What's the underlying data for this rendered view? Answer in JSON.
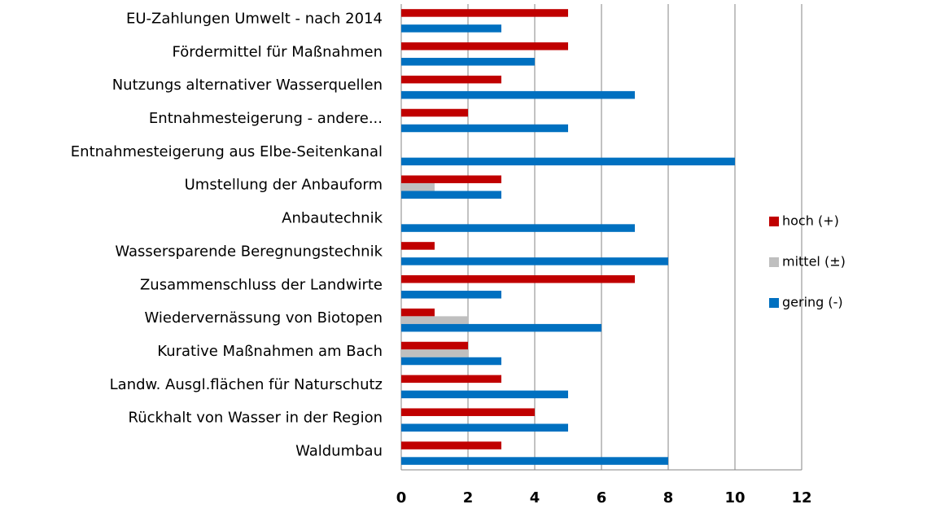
{
  "chart_data": {
    "type": "bar",
    "orientation": "horizontal",
    "categories": [
      "EU-Zahlungen Umwelt - nach 2014",
      "Fördermittel für Maßnahmen",
      "Nutzungs alternativer Wasserquellen",
      "Entnahmesteigerung - andere...",
      "Entnahmesteigerung aus Elbe-Seitenkanal",
      "Umstellung der Anbauform",
      "Anbautechnik",
      "Wassersparende Beregnungstechnik",
      "Zusammenschluss der Landwirte",
      "Wiedervernässung von Biotopen",
      "Kurative Maßnahmen am Bach",
      "Landw. Ausgl.flächen für Naturschutz",
      "Rückhalt von Wasser in der Region",
      "Waldumbau"
    ],
    "series": [
      {
        "name": "hoch (+)",
        "color": "#c00000",
        "values": [
          5,
          5,
          3,
          2,
          0,
          3,
          0,
          1,
          7,
          1,
          2,
          3,
          4,
          3
        ]
      },
      {
        "name": "mittel (±)",
        "color": "#bfbfbf",
        "values": [
          0,
          0,
          0,
          0,
          0,
          1,
          0,
          0,
          0,
          2,
          2,
          0,
          0,
          0
        ]
      },
      {
        "name": "gering (-)",
        "color": "#0070c0",
        "values": [
          3,
          4,
          7,
          5,
          10,
          3,
          7,
          8,
          3,
          6,
          3,
          5,
          5,
          8
        ]
      }
    ],
    "xlim": [
      0,
      12
    ],
    "xticks": [
      0,
      2,
      4,
      6,
      8,
      10,
      12
    ],
    "grid": true,
    "legend": "right"
  }
}
